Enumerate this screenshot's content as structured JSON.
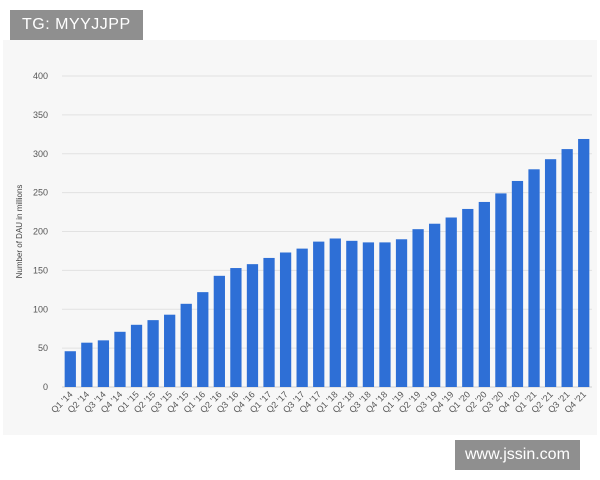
{
  "watermark_top": "TG: MYYJJPP",
  "watermark_bottom": "www.jssin.com",
  "chart_data": {
    "type": "bar",
    "ylabel": "Number of DAU in millions",
    "xlabel": "",
    "ylim": [
      0,
      400
    ],
    "yticks": [
      0,
      50,
      100,
      150,
      200,
      250,
      300,
      350,
      400
    ],
    "grid": true,
    "bar_color": "#2e6fd6",
    "categories": [
      "Q1 '14",
      "Q2 '14",
      "Q3 '14",
      "Q4 '14",
      "Q1 '15",
      "Q2 '15",
      "Q3 '15",
      "Q4 '15",
      "Q1 '16",
      "Q2 '16",
      "Q3 '16",
      "Q4 '16",
      "Q1 '17",
      "Q2 '17",
      "Q3 '17",
      "Q4 '17",
      "Q1 '18",
      "Q2 '18",
      "Q3 '18",
      "Q4 '18",
      "Q1 '19",
      "Q2 '19",
      "Q3 '19",
      "Q4 '19",
      "Q1 '20",
      "Q2 '20",
      "Q3 '20",
      "Q4 '20",
      "Q1 '21",
      "Q2 '21",
      "Q3 '21",
      "Q4 '21"
    ],
    "values": [
      46,
      57,
      60,
      71,
      80,
      86,
      93,
      107,
      122,
      143,
      153,
      158,
      166,
      173,
      178,
      187,
      191,
      188,
      186,
      186,
      190,
      203,
      210,
      218,
      229,
      238,
      249,
      265,
      280,
      293,
      306,
      319
    ]
  }
}
